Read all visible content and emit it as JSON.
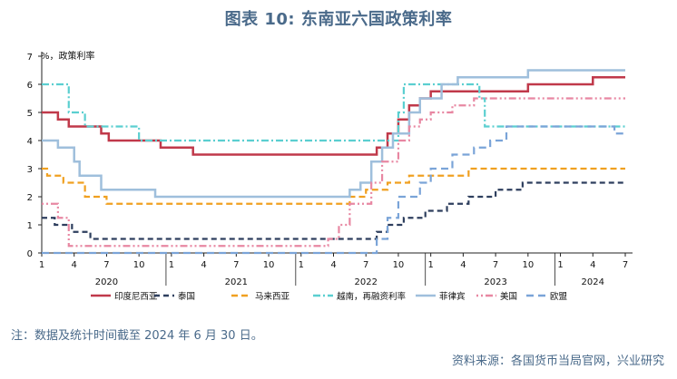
{
  "title": "图表 10:  东南亚六国政策利率",
  "note": "注：数据及统计时间截至 2024 年 6 月 30 日。",
  "source": "资料来源：各国货币当局官网，兴业研究",
  "chart_data": {
    "type": "line",
    "step": true,
    "unit_label": "%，政策利率",
    "ylim": [
      0,
      7
    ],
    "y_ticks": [
      0,
      1,
      2,
      3,
      4,
      5,
      6,
      7
    ],
    "x_range": [
      0,
      54
    ],
    "x_tick_labels": [
      "1",
      "4",
      "7",
      "10",
      "1",
      "4",
      "7",
      "10",
      "1",
      "4",
      "7",
      "10",
      "1",
      "4",
      "7",
      "10",
      "1",
      "4",
      "7"
    ],
    "x_tick_positions": [
      0,
      3,
      6,
      9,
      12,
      15,
      18,
      21,
      24,
      27,
      30,
      33,
      36,
      39,
      42,
      45,
      48,
      51,
      54
    ],
    "year_labels": [
      {
        "label": "2020",
        "x": 6
      },
      {
        "label": "2021",
        "x": 18
      },
      {
        "label": "2022",
        "x": 30
      },
      {
        "label": "2023",
        "x": 42
      },
      {
        "label": "2024",
        "x": 51
      }
    ],
    "grid": false,
    "legend_position": "bottom",
    "series": [
      {
        "name": "印度尼西亚",
        "color": "#c0394a",
        "dash": "",
        "width": 2.5,
        "points": [
          [
            0,
            5
          ],
          [
            1.5,
            5
          ],
          [
            2.5,
            4.75
          ],
          [
            3.3,
            4.5
          ],
          [
            5.5,
            4.5
          ],
          [
            6.3,
            4.25
          ],
          [
            6.8,
            4
          ],
          [
            11,
            4
          ],
          [
            10.6,
            4
          ],
          [
            10.6,
            4
          ],
          [
            10.6,
            4
          ],
          [
            10.6,
            4
          ]
        ]
      },
      {
        "name": "泰国",
        "color": "#2e3f5e",
        "dash": "6,4",
        "width": 2.2,
        "points": []
      },
      {
        "name": "马来西亚",
        "color": "#f0a020",
        "dash": "7,4",
        "width": 2.2,
        "points": []
      },
      {
        "name": "越南，再融资利率",
        "color": "#5bcfd0",
        "dash": "8,3,2,3",
        "width": 2.2,
        "points": []
      },
      {
        "name": "菲律宾",
        "color": "#9fbfdc",
        "dash": "",
        "width": 2.5,
        "points": []
      },
      {
        "name": "美国",
        "color": "#e887a2",
        "dash": "2,3,2,3,8,3",
        "width": 2.2,
        "points": []
      },
      {
        "name": "欧盟",
        "color": "#7aa4d8",
        "dash": "8,5",
        "width": 2.2,
        "points": []
      }
    ]
  }
}
